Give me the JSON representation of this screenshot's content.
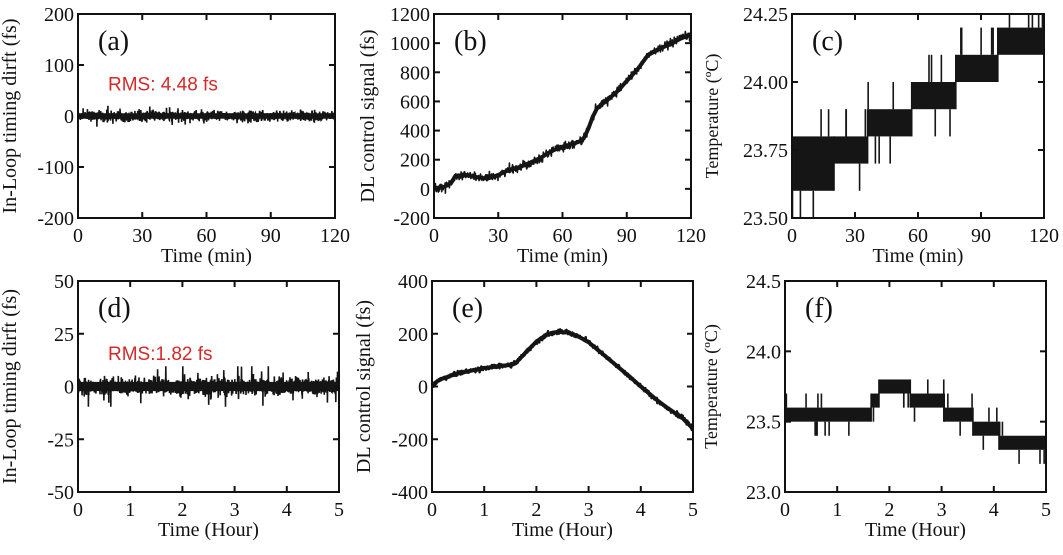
{
  "figure": {
    "annotation_color": "#d42a2a",
    "line_color": "#151515"
  },
  "chart_data": [
    {
      "id": "a",
      "type": "line",
      "panel_label": "(a)",
      "title": "",
      "xlabel": "Time (min)",
      "ylabel": "In-Loop timing dirft (fs)",
      "xlim": [
        0,
        120
      ],
      "ylim": [
        -200,
        200
      ],
      "xticks": [
        0,
        30,
        60,
        90,
        120
      ],
      "xtick_labels": [
        "0",
        "30",
        "60",
        "90",
        "120"
      ],
      "yticks": [
        -200,
        -100,
        0,
        100,
        200
      ],
      "ytick_labels": [
        "-200",
        "-100",
        "0",
        "100",
        "200"
      ],
      "annotation": "RMS: 4.48 fs",
      "grid": false,
      "series": [
        {
          "name": "in-loop timing drift",
          "style": "noise",
          "mean": 0,
          "rms": 4.48,
          "x": [
            0,
            10,
            20,
            30,
            40,
            50,
            60,
            70,
            80,
            90,
            100,
            110,
            120
          ],
          "envelope": [
            14,
            13,
            12,
            12,
            11,
            11,
            9,
            9,
            9,
            10,
            10,
            11,
            11
          ]
        }
      ]
    },
    {
      "id": "b",
      "type": "line",
      "panel_label": "(b)",
      "title": "",
      "xlabel": "Time (min)",
      "ylabel": "DL control signal (fs)",
      "xlim": [
        0,
        120
      ],
      "ylim": [
        -200,
        1200
      ],
      "xticks": [
        0,
        30,
        60,
        90,
        120
      ],
      "xtick_labels": [
        "0",
        "30",
        "60",
        "90",
        "120"
      ],
      "yticks": [
        -200,
        0,
        200,
        400,
        600,
        800,
        1000,
        1200
      ],
      "ytick_labels": [
        "-200",
        "0",
        "200",
        "400",
        "600",
        "800",
        "1000",
        "1200"
      ],
      "grid": false,
      "series": [
        {
          "name": "DL control signal",
          "style": "noisy-line",
          "noise": 14,
          "x": [
            0,
            5,
            8,
            10,
            15,
            20,
            25,
            30,
            35,
            40,
            45,
            50,
            55,
            60,
            65,
            68,
            70,
            72,
            74,
            76,
            80,
            85,
            90,
            95,
            100,
            102,
            105,
            110,
            115,
            120
          ],
          "y": [
            0,
            15,
            40,
            90,
            95,
            80,
            70,
            95,
            130,
            150,
            180,
            215,
            260,
            290,
            310,
            325,
            350,
            410,
            490,
            550,
            600,
            660,
            740,
            820,
            920,
            935,
            960,
            990,
            1030,
            1060
          ]
        }
      ]
    },
    {
      "id": "c",
      "type": "line",
      "panel_label": "(c)",
      "title": "",
      "xlabel": "Time (min)",
      "ylabel": "Temperature (ºC)",
      "xlim": [
        0,
        120
      ],
      "ylim": [
        23.5,
        24.25
      ],
      "xticks": [
        0,
        30,
        60,
        90,
        120
      ],
      "xtick_labels": [
        "0",
        "30",
        "60",
        "90",
        "120"
      ],
      "yticks": [
        23.5,
        23.75,
        24.0,
        24.25
      ],
      "ytick_labels": [
        "23.50",
        "23.75",
        "24.00",
        "24.25"
      ],
      "grid": false,
      "series": [
        {
          "name": "temperature",
          "style": "quantized-band",
          "segments": [
            {
              "x0": 0,
              "x1": 20,
              "low": 23.6,
              "high": 23.8
            },
            {
              "x0": 20,
              "x1": 36,
              "low": 23.7,
              "high": 23.8
            },
            {
              "x0": 36,
              "x1": 57,
              "low": 23.8,
              "high": 23.9
            },
            {
              "x0": 57,
              "x1": 78,
              "low": 23.9,
              "high": 24.0
            },
            {
              "x0": 78,
              "x1": 98,
              "low": 24.0,
              "high": 24.1
            },
            {
              "x0": 98,
              "x1": 120,
              "low": 24.1,
              "high": 24.2
            }
          ]
        }
      ]
    },
    {
      "id": "d",
      "type": "line",
      "panel_label": "(d)",
      "title": "",
      "xlabel": "Time (Hour)",
      "ylabel": "In-Loop timing dirft (fs)",
      "xlim": [
        0,
        5
      ],
      "ylim": [
        -50,
        50
      ],
      "xticks": [
        0,
        1,
        2,
        3,
        4,
        5
      ],
      "xtick_labels": [
        "0",
        "1",
        "2",
        "3",
        "4",
        "5"
      ],
      "yticks": [
        -50,
        -25,
        0,
        25,
        50
      ],
      "ytick_labels": [
        "-50",
        "-25",
        "0",
        "25",
        "50"
      ],
      "annotation": "RMS:1.82 fs",
      "grid": false,
      "series": [
        {
          "name": "in-loop timing drift",
          "style": "noise",
          "mean": 0,
          "rms": 1.82,
          "x": [
            0,
            1,
            2,
            3,
            4,
            5
          ],
          "envelope": [
            6,
            6,
            6,
            6,
            6,
            6
          ]
        }
      ]
    },
    {
      "id": "e",
      "type": "line",
      "panel_label": "(e)",
      "title": "",
      "xlabel": "Time (Hour)",
      "ylabel": "DL control signal (fs)",
      "xlim": [
        0,
        5
      ],
      "ylim": [
        -400,
        400
      ],
      "xticks": [
        0,
        1,
        2,
        3,
        4,
        5
      ],
      "xtick_labels": [
        "0",
        "1",
        "2",
        "3",
        "4",
        "5"
      ],
      "yticks": [
        -400,
        -200,
        0,
        200,
        400
      ],
      "ytick_labels": [
        "-400",
        "-200",
        "0",
        "200",
        "400"
      ],
      "grid": false,
      "series": [
        {
          "name": "DL control signal",
          "style": "noisy-line",
          "noise": 4,
          "x": [
            0,
            0.1,
            0.2,
            0.5,
            1.0,
            1.5,
            1.6,
            1.8,
            2.0,
            2.2,
            2.4,
            2.6,
            2.8,
            3.0,
            3.2,
            3.5,
            3.8,
            4.0,
            4.3,
            4.5,
            4.8,
            5.0
          ],
          "y": [
            0,
            20,
            30,
            50,
            70,
            82,
            88,
            130,
            170,
            198,
            207,
            205,
            190,
            168,
            135,
            85,
            35,
            0,
            -50,
            -80,
            -120,
            -160
          ]
        }
      ]
    },
    {
      "id": "f",
      "type": "line",
      "panel_label": "(f)",
      "title": "",
      "xlabel": "Time (Hour)",
      "ylabel": "Temperature (ºC)",
      "xlim": [
        0,
        5
      ],
      "ylim": [
        23.0,
        24.5
      ],
      "xticks": [
        0,
        1,
        2,
        3,
        4,
        5
      ],
      "xtick_labels": [
        "0",
        "1",
        "2",
        "3",
        "4",
        "5"
      ],
      "yticks": [
        23.0,
        23.5,
        24.0,
        24.5
      ],
      "ytick_labels": [
        "23.0",
        "23.5",
        "24.0",
        "24.5"
      ],
      "grid": false,
      "series": [
        {
          "name": "temperature",
          "style": "quantized-band",
          "segments": [
            {
              "x0": 0,
              "x1": 1.65,
              "low": 23.5,
              "high": 23.6
            },
            {
              "x0": 1.65,
              "x1": 1.8,
              "low": 23.6,
              "high": 23.7
            },
            {
              "x0": 1.8,
              "x1": 2.4,
              "low": 23.7,
              "high": 23.8
            },
            {
              "x0": 2.4,
              "x1": 3.05,
              "low": 23.6,
              "high": 23.7
            },
            {
              "x0": 3.05,
              "x1": 3.6,
              "low": 23.5,
              "high": 23.6
            },
            {
              "x0": 3.6,
              "x1": 4.1,
              "low": 23.4,
              "high": 23.5
            },
            {
              "x0": 4.1,
              "x1": 5.0,
              "low": 23.3,
              "high": 23.4
            }
          ]
        }
      ]
    }
  ]
}
